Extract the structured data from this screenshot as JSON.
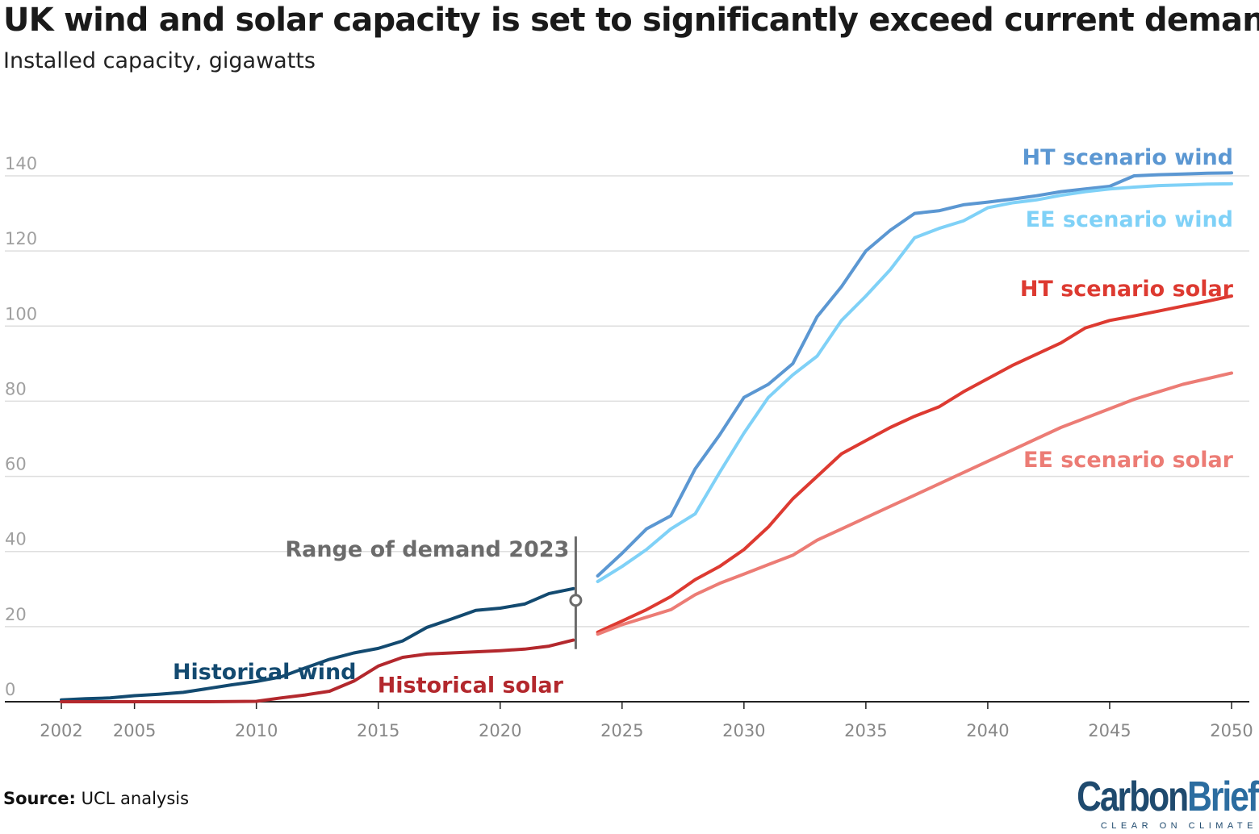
{
  "title": "UK wind and solar capacity is set to significantly exceed current demand",
  "subtitle": "Installed capacity, gigawatts",
  "source_label": "Source:",
  "source_text": "UCL analysis",
  "logo": {
    "word1": "Carbon",
    "word2": "Brief",
    "tagline": "CLEAR ON CLIMATE"
  },
  "colors": {
    "historical_wind": "#134a70",
    "historical_solar": "#b3282d",
    "ht_wind": "#5b97d2",
    "ee_wind": "#7fd1f7",
    "ht_solar": "#dd3a31",
    "ee_solar": "#ec7c75",
    "demand": "#6b6b6b",
    "grid": "#dedede",
    "tick": "#a0a0a0"
  },
  "chart_data": {
    "type": "line",
    "title": "UK wind and solar capacity is set to significantly exceed current demand",
    "ylabel": "Installed capacity, gigawatts",
    "xlim": [
      2002,
      2050
    ],
    "ylim": [
      0,
      140
    ],
    "yticks": [
      0,
      20,
      40,
      60,
      80,
      100,
      120,
      140
    ],
    "xticks": [
      2002,
      2005,
      2010,
      2015,
      2020,
      2025,
      2030,
      2035,
      2040,
      2045,
      2050
    ],
    "grid": true,
    "series": [
      {
        "name": "Historical wind",
        "color_key": "historical_wind",
        "label_anchor": "start",
        "label_at": [
          2006.5,
          6
        ],
        "points": [
          [
            2002,
            0.5
          ],
          [
            2003,
            0.8
          ],
          [
            2004,
            1.0
          ],
          [
            2005,
            1.6
          ],
          [
            2006,
            2.0
          ],
          [
            2007,
            2.5
          ],
          [
            2008,
            3.5
          ],
          [
            2009,
            4.5
          ],
          [
            2010,
            5.4
          ],
          [
            2011,
            6.6
          ],
          [
            2012,
            9.0
          ],
          [
            2013,
            11.3
          ],
          [
            2014,
            13.0
          ],
          [
            2015,
            14.2
          ],
          [
            2016,
            16.2
          ],
          [
            2017,
            19.8
          ],
          [
            2018,
            22.0
          ],
          [
            2019,
            24.3
          ],
          [
            2020,
            24.9
          ],
          [
            2021,
            26.0
          ],
          [
            2022,
            28.8
          ],
          [
            2023,
            30.1
          ]
        ]
      },
      {
        "name": "Historical solar",
        "color_key": "historical_solar",
        "label_anchor": "start",
        "label_at": [
          2014.9,
          2.5
        ],
        "points": [
          [
            2002,
            0.0
          ],
          [
            2005,
            0.0
          ],
          [
            2008,
            0.0
          ],
          [
            2010,
            0.1
          ],
          [
            2011,
            1.0
          ],
          [
            2012,
            1.8
          ],
          [
            2013,
            2.8
          ],
          [
            2014,
            5.5
          ],
          [
            2015,
            9.5
          ],
          [
            2016,
            11.8
          ],
          [
            2017,
            12.7
          ],
          [
            2018,
            13.0
          ],
          [
            2019,
            13.3
          ],
          [
            2020,
            13.6
          ],
          [
            2021,
            14.0
          ],
          [
            2022,
            14.8
          ],
          [
            2023,
            16.4
          ]
        ]
      },
      {
        "name": "HT scenario wind",
        "color_key": "ht_wind",
        "label_anchor": "end",
        "label_at": [
          2050,
          143
        ],
        "points": [
          [
            2024,
            33.5
          ],
          [
            2025,
            39.5
          ],
          [
            2026,
            46.0
          ],
          [
            2027,
            49.5
          ],
          [
            2028,
            62.0
          ],
          [
            2029,
            71.0
          ],
          [
            2030,
            81.0
          ],
          [
            2031,
            84.5
          ],
          [
            2032,
            90.0
          ],
          [
            2033,
            102.5
          ],
          [
            2034,
            110.5
          ],
          [
            2035,
            120.0
          ],
          [
            2036,
            125.5
          ],
          [
            2037,
            130.0
          ],
          [
            2038,
            130.7
          ],
          [
            2039,
            132.3
          ],
          [
            2040,
            133.0
          ],
          [
            2041,
            133.8
          ],
          [
            2042,
            134.7
          ],
          [
            2043,
            135.8
          ],
          [
            2044,
            136.5
          ],
          [
            2045,
            137.2
          ],
          [
            2046,
            140.0
          ],
          [
            2047,
            140.3
          ],
          [
            2048,
            140.5
          ],
          [
            2049,
            140.7
          ],
          [
            2050,
            140.8
          ]
        ]
      },
      {
        "name": "EE scenario wind",
        "color_key": "ee_wind",
        "label_anchor": "end",
        "label_at": [
          2050,
          126.5
        ],
        "points": [
          [
            2024,
            32.0
          ],
          [
            2025,
            36.0
          ],
          [
            2026,
            40.5
          ],
          [
            2027,
            46.0
          ],
          [
            2028,
            50.0
          ],
          [
            2029,
            61.0
          ],
          [
            2030,
            71.5
          ],
          [
            2031,
            81.0
          ],
          [
            2032,
            87.0
          ],
          [
            2033,
            92.0
          ],
          [
            2034,
            101.5
          ],
          [
            2035,
            108.0
          ],
          [
            2036,
            115.0
          ],
          [
            2037,
            123.5
          ],
          [
            2038,
            126.0
          ],
          [
            2039,
            128.0
          ],
          [
            2040,
            131.5
          ],
          [
            2041,
            132.8
          ],
          [
            2042,
            133.6
          ],
          [
            2043,
            134.8
          ],
          [
            2044,
            135.8
          ],
          [
            2045,
            136.5
          ],
          [
            2046,
            137.0
          ],
          [
            2047,
            137.4
          ],
          [
            2048,
            137.6
          ],
          [
            2049,
            137.8
          ],
          [
            2050,
            137.9
          ]
        ]
      },
      {
        "name": "HT scenario solar",
        "color_key": "ht_solar",
        "label_anchor": "end",
        "label_at": [
          2050,
          108
        ],
        "points": [
          [
            2024,
            18.5
          ],
          [
            2025,
            21.5
          ],
          [
            2026,
            24.5
          ],
          [
            2027,
            28.0
          ],
          [
            2028,
            32.5
          ],
          [
            2029,
            36.0
          ],
          [
            2030,
            40.5
          ],
          [
            2031,
            46.5
          ],
          [
            2032,
            54.0
          ],
          [
            2033,
            60.0
          ],
          [
            2034,
            66.0
          ],
          [
            2035,
            69.5
          ],
          [
            2036,
            73.0
          ],
          [
            2037,
            76.0
          ],
          [
            2038,
            78.5
          ],
          [
            2039,
            82.5
          ],
          [
            2040,
            86.0
          ],
          [
            2041,
            89.5
          ],
          [
            2042,
            92.5
          ],
          [
            2043,
            95.5
          ],
          [
            2044,
            99.5
          ],
          [
            2045,
            101.5
          ],
          [
            2046,
            102.7
          ],
          [
            2047,
            104.0
          ],
          [
            2048,
            105.3
          ],
          [
            2049,
            106.6
          ],
          [
            2050,
            108.0
          ]
        ]
      },
      {
        "name": "EE scenario solar",
        "color_key": "ee_solar",
        "label_anchor": "end",
        "label_at": [
          2050,
          62.5
        ],
        "points": [
          [
            2024,
            18.0
          ],
          [
            2025,
            20.5
          ],
          [
            2026,
            22.5
          ],
          [
            2027,
            24.5
          ],
          [
            2028,
            28.5
          ],
          [
            2029,
            31.5
          ],
          [
            2030,
            34.0
          ],
          [
            2031,
            36.5
          ],
          [
            2032,
            39.0
          ],
          [
            2033,
            43.0
          ],
          [
            2034,
            46.0
          ],
          [
            2035,
            49.0
          ],
          [
            2036,
            52.0
          ],
          [
            2037,
            55.0
          ],
          [
            2038,
            58.0
          ],
          [
            2039,
            61.0
          ],
          [
            2040,
            64.0
          ],
          [
            2041,
            67.0
          ],
          [
            2042,
            70.0
          ],
          [
            2043,
            73.0
          ],
          [
            2044,
            75.5
          ],
          [
            2045,
            78.0
          ],
          [
            2046,
            80.5
          ],
          [
            2047,
            82.5
          ],
          [
            2048,
            84.5
          ],
          [
            2049,
            86.0
          ],
          [
            2050,
            87.5
          ]
        ]
      }
    ],
    "demand_range": {
      "label": "Range of demand 2023",
      "x": 2023.1,
      "min": 14.0,
      "max": 44.0,
      "marker": 27.0
    }
  }
}
